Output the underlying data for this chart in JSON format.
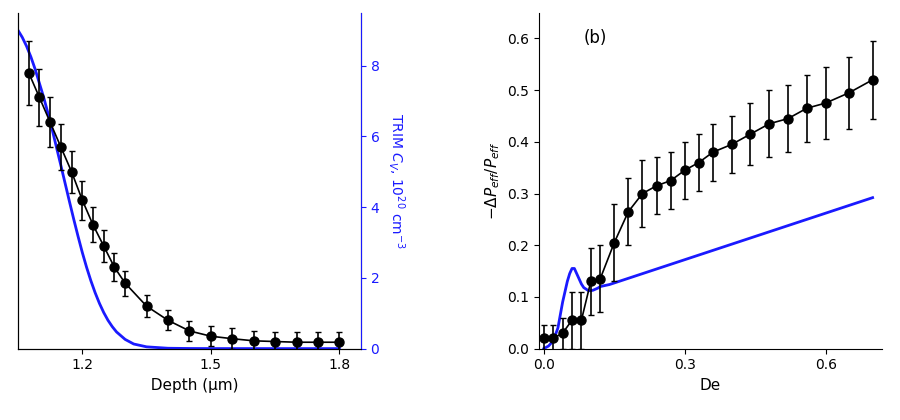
{
  "panel_a": {
    "xlabel": "Depth (μm)",
    "ylabel_right": "TRIM $C_V$, $10^{20}$ cm$^{-3}$",
    "xlim": [
      1.05,
      1.85
    ],
    "ylim": [
      0,
      9.5
    ],
    "xticks": [
      1.2,
      1.5,
      1.8
    ],
    "yticks_right": [
      0,
      2,
      4,
      6,
      8
    ],
    "scatter_x": [
      1.075,
      1.1,
      1.125,
      1.15,
      1.175,
      1.2,
      1.225,
      1.25,
      1.275,
      1.3,
      1.35,
      1.4,
      1.45,
      1.5,
      1.55,
      1.6,
      1.65,
      1.7,
      1.75,
      1.8
    ],
    "scatter_y": [
      7.8,
      7.1,
      6.4,
      5.7,
      5.0,
      4.2,
      3.5,
      2.9,
      2.3,
      1.85,
      1.2,
      0.8,
      0.5,
      0.35,
      0.28,
      0.22,
      0.2,
      0.18,
      0.18,
      0.18
    ],
    "scatter_yerr": [
      0.9,
      0.8,
      0.7,
      0.65,
      0.6,
      0.55,
      0.5,
      0.45,
      0.4,
      0.35,
      0.32,
      0.28,
      0.28,
      0.28,
      0.3,
      0.28,
      0.28,
      0.28,
      0.28,
      0.28
    ],
    "blue_x": [
      1.05,
      1.06,
      1.07,
      1.08,
      1.09,
      1.1,
      1.11,
      1.12,
      1.13,
      1.14,
      1.15,
      1.16,
      1.17,
      1.18,
      1.19,
      1.2,
      1.21,
      1.22,
      1.23,
      1.24,
      1.25,
      1.26,
      1.27,
      1.28,
      1.3,
      1.32,
      1.35,
      1.4,
      1.45,
      1.5,
      1.55,
      1.6,
      1.7,
      1.8
    ],
    "blue_y": [
      9.0,
      8.8,
      8.55,
      8.25,
      7.9,
      7.5,
      7.1,
      6.65,
      6.18,
      5.68,
      5.18,
      4.67,
      4.16,
      3.66,
      3.18,
      2.72,
      2.3,
      1.92,
      1.58,
      1.28,
      1.02,
      0.8,
      0.62,
      0.47,
      0.26,
      0.13,
      0.05,
      0.01,
      0.003,
      0.001,
      0.0005,
      0.0002,
      5e-05,
      1e-05
    ],
    "scatter_color": "black",
    "line_color": "#1a1aff",
    "marker": "o",
    "markersize": 6.5,
    "linewidth": 2.0
  },
  "panel_b": {
    "label": "(b)",
    "xlabel": "De",
    "ylabel": "$-\\Delta P_{eff}/P_{eff}$",
    "xlim": [
      -0.01,
      0.72
    ],
    "ylim": [
      0.0,
      0.65
    ],
    "xticks": [
      0.0,
      0.3,
      0.6
    ],
    "yticks": [
      0.0,
      0.1,
      0.2,
      0.3,
      0.4,
      0.5,
      0.6
    ],
    "scatter_x": [
      0.0,
      0.02,
      0.04,
      0.06,
      0.08,
      0.1,
      0.12,
      0.15,
      0.18,
      0.21,
      0.24,
      0.27,
      0.3,
      0.33,
      0.36,
      0.4,
      0.44,
      0.48,
      0.52,
      0.56,
      0.6,
      0.65,
      0.7
    ],
    "scatter_y": [
      0.02,
      0.02,
      0.03,
      0.055,
      0.055,
      0.13,
      0.135,
      0.205,
      0.265,
      0.3,
      0.315,
      0.325,
      0.345,
      0.36,
      0.38,
      0.395,
      0.415,
      0.435,
      0.445,
      0.465,
      0.475,
      0.495,
      0.52
    ],
    "scatter_yerr": [
      0.025,
      0.025,
      0.03,
      0.055,
      0.055,
      0.065,
      0.065,
      0.075,
      0.065,
      0.065,
      0.055,
      0.055,
      0.055,
      0.055,
      0.055,
      0.055,
      0.06,
      0.065,
      0.065,
      0.065,
      0.07,
      0.07,
      0.075
    ],
    "blue_x": [
      0.0,
      0.01,
      0.02,
      0.03,
      0.035,
      0.04,
      0.045,
      0.05,
      0.055,
      0.06,
      0.065,
      0.07,
      0.075,
      0.08,
      0.085,
      0.09,
      0.095,
      0.1,
      0.105,
      0.11,
      0.115,
      0.12,
      0.13,
      0.14,
      0.15,
      0.16,
      0.17,
      0.18,
      0.19,
      0.2,
      0.21,
      0.22,
      0.23,
      0.24,
      0.25,
      0.26,
      0.27,
      0.28,
      0.29,
      0.3,
      0.31,
      0.32,
      0.33,
      0.34,
      0.35,
      0.36,
      0.37,
      0.38,
      0.39,
      0.4,
      0.41,
      0.42,
      0.43,
      0.44,
      0.45,
      0.46,
      0.47,
      0.48,
      0.49,
      0.5,
      0.52,
      0.54,
      0.56,
      0.58,
      0.6,
      0.62,
      0.64,
      0.66,
      0.68,
      0.7
    ],
    "blue_y": [
      0.0,
      0.005,
      0.015,
      0.04,
      0.065,
      0.09,
      0.11,
      0.13,
      0.145,
      0.155,
      0.155,
      0.145,
      0.135,
      0.125,
      0.118,
      0.115,
      0.112,
      0.112,
      0.113,
      0.115,
      0.117,
      0.12,
      0.122,
      0.124,
      0.127,
      0.13,
      0.133,
      0.136,
      0.139,
      0.142,
      0.145,
      0.148,
      0.151,
      0.154,
      0.157,
      0.16,
      0.163,
      0.166,
      0.169,
      0.172,
      0.175,
      0.178,
      0.181,
      0.184,
      0.187,
      0.19,
      0.193,
      0.196,
      0.199,
      0.202,
      0.205,
      0.208,
      0.211,
      0.214,
      0.217,
      0.22,
      0.223,
      0.226,
      0.229,
      0.232,
      0.238,
      0.244,
      0.25,
      0.256,
      0.262,
      0.268,
      0.274,
      0.28,
      0.286,
      0.292
    ],
    "scatter_color": "black",
    "line_color": "#1a1aff",
    "marker": "o",
    "markersize": 6.5,
    "linewidth": 2.0
  },
  "background_color": "white",
  "dpi": 100
}
